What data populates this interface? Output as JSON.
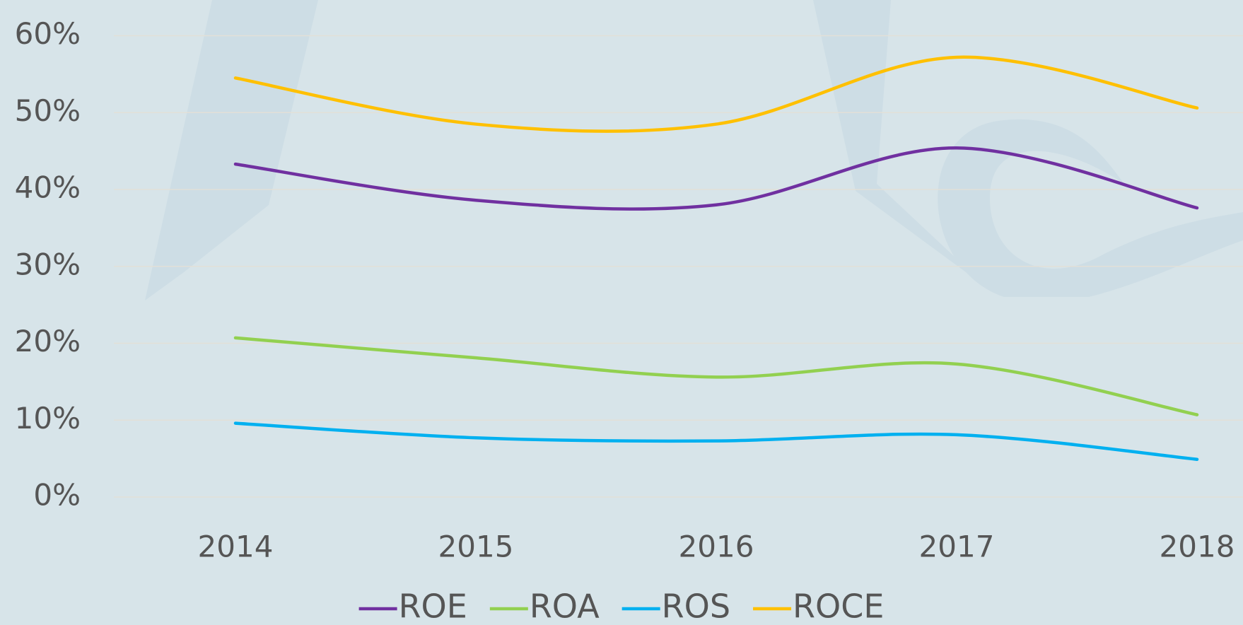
{
  "chart_data": {
    "type": "line",
    "categories": [
      "2014",
      "2015",
      "2016",
      "2017",
      "2018"
    ],
    "series": [
      {
        "name": "ROE",
        "color": "#7030a0",
        "values": [
          43.3,
          38.6,
          38.0,
          45.4,
          37.6
        ]
      },
      {
        "name": "ROA",
        "color": "#92d050",
        "values": [
          20.7,
          18.1,
          15.6,
          17.3,
          10.7
        ]
      },
      {
        "name": "ROS",
        "color": "#00b0f0",
        "values": [
          9.6,
          7.7,
          7.3,
          8.1,
          4.9
        ]
      },
      {
        "name": "ROCE",
        "color": "#ffc000",
        "values": [
          54.5,
          48.5,
          48.5,
          57.2,
          50.6
        ]
      }
    ],
    "ylim": [
      0,
      60
    ],
    "yticks": [
      {
        "value": 0,
        "label": "0%"
      },
      {
        "value": 10,
        "label": "10%"
      },
      {
        "value": 20,
        "label": "20%"
      },
      {
        "value": 30,
        "label": "30%"
      },
      {
        "value": 40,
        "label": "40%"
      },
      {
        "value": 50,
        "label": "50%"
      },
      {
        "value": 60,
        "label": "60%"
      }
    ],
    "grid": true,
    "legend": "bottom",
    "smooth": true
  }
}
